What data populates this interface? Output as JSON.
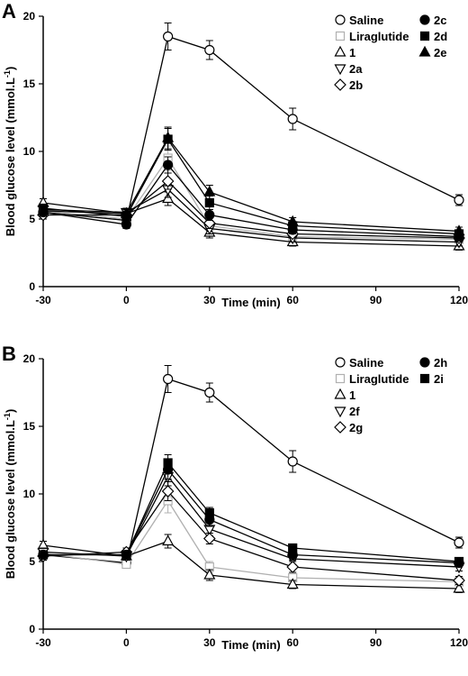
{
  "figure": {
    "panel_labels": [
      "A",
      "B"
    ]
  },
  "chart_data": [
    {
      "panel": "A",
      "type": "line",
      "xlabel": "Time (min)",
      "ylabel": "Blood glucose level (mmol.L",
      "ylabel_superscript": "-1",
      "ylabel_close": ")",
      "x": [
        -30,
        0,
        15,
        30,
        60,
        120
      ],
      "xticks": [
        -30,
        0,
        30,
        60,
        90,
        120
      ],
      "xlim": [
        -30,
        120
      ],
      "yticks": [
        0,
        5,
        10,
        15,
        20
      ],
      "ylim": [
        0,
        20
      ],
      "grid": false,
      "legend_position": "top-right",
      "series": [
        {
          "name": "Saline",
          "marker": "circle-open",
          "color": "#000000",
          "values": [
            5.5,
            4.9,
            18.5,
            17.5,
            12.4,
            6.4
          ],
          "errors": [
            0.3,
            0.3,
            1.0,
            0.7,
            0.8,
            0.4
          ]
        },
        {
          "name": "Liraglutide",
          "marker": "square-open",
          "color": "#b0b0b0",
          "values": [
            5.6,
            5.0,
            9.5,
            4.5,
            3.7,
            3.5
          ],
          "errors": [
            0.3,
            0.3,
            0.9,
            0.4,
            0.3,
            0.3
          ]
        },
        {
          "name": "1",
          "marker": "triangle-up-open",
          "color": "#000000",
          "values": [
            6.2,
            5.4,
            6.5,
            4.0,
            3.3,
            3.0
          ],
          "errors": [
            0.3,
            0.3,
            0.5,
            0.4,
            0.3,
            0.3
          ]
        },
        {
          "name": "2a",
          "marker": "triangle-down-open",
          "color": "#000000",
          "values": [
            5.7,
            5.5,
            7.2,
            4.3,
            3.6,
            3.3
          ],
          "errors": [
            0.3,
            0.3,
            0.6,
            0.4,
            0.3,
            0.3
          ]
        },
        {
          "name": "2b",
          "marker": "diamond-open",
          "color": "#000000",
          "values": [
            5.3,
            5.3,
            7.8,
            4.7,
            3.9,
            3.6
          ],
          "errors": [
            0.3,
            0.3,
            0.6,
            0.4,
            0.3,
            0.3
          ]
        },
        {
          "name": "2c",
          "marker": "circle-filled",
          "color": "#000000",
          "values": [
            5.5,
            4.6,
            9.0,
            5.3,
            4.2,
            3.7
          ],
          "errors": [
            0.3,
            0.3,
            0.6,
            0.4,
            0.3,
            0.3
          ]
        },
        {
          "name": "2d",
          "marker": "square-filled",
          "color": "#000000",
          "values": [
            5.8,
            5.2,
            10.9,
            6.2,
            4.5,
            3.9
          ],
          "errors": [
            0.3,
            0.3,
            0.8,
            0.5,
            0.3,
            0.3
          ]
        },
        {
          "name": "2e",
          "marker": "triangle-up-filled",
          "color": "#000000",
          "values": [
            5.6,
            5.4,
            11.0,
            7.0,
            4.8,
            4.1
          ],
          "errors": [
            0.3,
            0.3,
            0.8,
            0.5,
            0.3,
            0.3
          ]
        }
      ],
      "legend_columns": [
        [
          "Saline",
          "Liraglutide",
          "1",
          "2a",
          "2b"
        ],
        [
          "2c",
          "2d",
          "2e"
        ]
      ]
    },
    {
      "panel": "B",
      "type": "line",
      "xlabel": "Time (min)",
      "ylabel": "Blood glucose level (mmol.L",
      "ylabel_superscript": "-1",
      "ylabel_close": ")",
      "x": [
        -30,
        0,
        15,
        30,
        60,
        120
      ],
      "xticks": [
        -30,
        0,
        30,
        60,
        90,
        120
      ],
      "xlim": [
        -30,
        120
      ],
      "yticks": [
        0,
        5,
        10,
        15,
        20
      ],
      "ylim": [
        0,
        20
      ],
      "grid": false,
      "legend_position": "top-right",
      "series": [
        {
          "name": "Saline",
          "marker": "circle-open",
          "color": "#000000",
          "values": [
            5.5,
            4.9,
            18.5,
            17.5,
            12.4,
            6.4
          ],
          "errors": [
            0.3,
            0.3,
            1.0,
            0.7,
            0.8,
            0.4
          ]
        },
        {
          "name": "Liraglutide",
          "marker": "square-open",
          "color": "#b0b0b0",
          "values": [
            5.6,
            4.8,
            9.5,
            4.6,
            3.8,
            3.5
          ],
          "errors": [
            0.3,
            0.3,
            0.9,
            0.4,
            0.3,
            0.3
          ]
        },
        {
          "name": "1",
          "marker": "triangle-up-open",
          "color": "#000000",
          "values": [
            6.2,
            5.4,
            6.5,
            4.0,
            3.3,
            3.0
          ],
          "errors": [
            0.3,
            0.3,
            0.5,
            0.4,
            0.3,
            0.3
          ]
        },
        {
          "name": "2f",
          "marker": "triangle-down-open",
          "color": "#000000",
          "values": [
            5.7,
            5.4,
            11.3,
            7.4,
            5.2,
            4.6
          ],
          "errors": [
            0.3,
            0.3,
            0.7,
            0.5,
            0.4,
            0.3
          ]
        },
        {
          "name": "2g",
          "marker": "diamond-open",
          "color": "#000000",
          "values": [
            5.4,
            5.7,
            10.2,
            6.7,
            4.6,
            3.6
          ],
          "errors": [
            0.3,
            0.3,
            0.7,
            0.4,
            0.4,
            0.3
          ]
        },
        {
          "name": "2h",
          "marker": "circle-filled",
          "color": "#000000",
          "values": [
            5.5,
            5.5,
            11.8,
            8.1,
            5.5,
            4.9
          ],
          "errors": [
            0.3,
            0.3,
            0.7,
            0.5,
            0.4,
            0.3
          ]
        },
        {
          "name": "2i",
          "marker": "square-filled",
          "color": "#000000",
          "values": [
            5.5,
            5.5,
            12.3,
            8.6,
            6.0,
            5.0
          ],
          "errors": [
            0.3,
            0.3,
            0.6,
            0.4,
            0.3,
            0.3
          ]
        }
      ],
      "legend_columns": [
        [
          "Saline",
          "Liraglutide",
          "1",
          "2f",
          "2g"
        ],
        [
          "2h",
          "2i"
        ]
      ]
    }
  ]
}
